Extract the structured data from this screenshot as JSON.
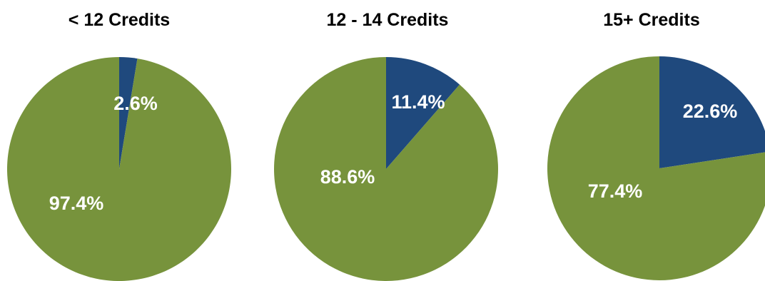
{
  "chart_data": [
    {
      "type": "pie",
      "title": "< 12 Credits",
      "slices": [
        {
          "value": 2.6,
          "label": "2.6%",
          "color": "#1f497d"
        },
        {
          "value": 97.4,
          "label": "97.4%",
          "color": "#77933c"
        }
      ]
    },
    {
      "type": "pie",
      "title": "12 - 14 Credits",
      "slices": [
        {
          "value": 11.4,
          "label": "11.4%",
          "color": "#1f497d"
        },
        {
          "value": 88.6,
          "label": "88.6%",
          "color": "#77933c"
        }
      ]
    },
    {
      "type": "pie",
      "title": "15+ Credits",
      "slices": [
        {
          "value": 22.6,
          "label": "22.6%",
          "color": "#1f497d"
        },
        {
          "value": 77.4,
          "label": "77.4%",
          "color": "#77933c"
        }
      ]
    }
  ]
}
